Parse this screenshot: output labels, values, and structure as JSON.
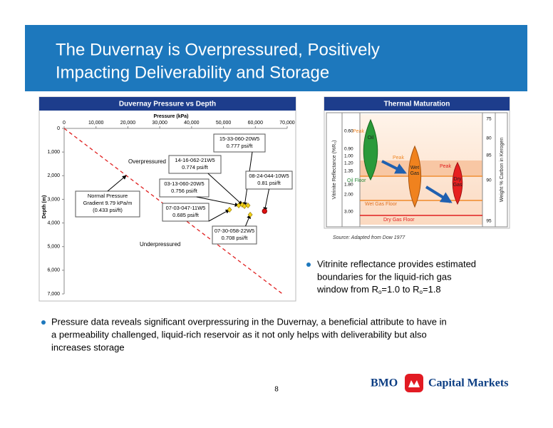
{
  "header": {
    "title_lines": [
      "The Duvernay is Overpressured, Positively",
      "Impacting Deliverability and Storage"
    ]
  },
  "chart_data": {
    "type": "scatter",
    "title": "Duvernay Pressure vs Depth",
    "x_label": "Pressure (kPa)",
    "y_label": "Depth (m)",
    "xlim": [
      0,
      70000
    ],
    "xticks": [
      0,
      {
        "value": 10000,
        "label": "10,000"
      },
      {
        "value": 20000,
        "label": "20,000"
      },
      {
        "value": 30000,
        "label": "30,000"
      },
      {
        "value": 40000,
        "label": "40,000"
      },
      {
        "value": 50000,
        "label": "50,000"
      },
      {
        "value": 60000,
        "label": "60,000"
      },
      {
        "value": 70000,
        "label": "70,000"
      }
    ],
    "ylim": [
      0,
      7000
    ],
    "y_reversed": true,
    "yticks": [
      0,
      {
        "value": 1000,
        "label": "1,000"
      },
      {
        "value": 2000,
        "label": "2,000"
      },
      {
        "value": 3000,
        "label": "3,000"
      },
      {
        "value": 4000,
        "label": "4,000"
      },
      {
        "value": 5000,
        "label": "5,000"
      },
      {
        "value": 6000,
        "label": "6,000"
      },
      {
        "value": 7000,
        "label": "7,000"
      }
    ],
    "points": [
      {
        "x": 51900,
        "y": 3440,
        "color": "#f2d21b",
        "marker": "diamond",
        "well": "07-03-047-11W5",
        "gradient": "0.685 psi/ft"
      },
      {
        "x": 54800,
        "y": 3260,
        "color": "#f2d21b",
        "marker": "diamond",
        "well": "03-13-060-20W5",
        "gradient": "0.756 psi/ft"
      },
      {
        "x": 55900,
        "y": 3230,
        "color": "#f2d21b",
        "marker": "diamond",
        "well": "14-16-062-21W5",
        "gradient": "0.774 psi/ft"
      },
      {
        "x": 56600,
        "y": 3290,
        "color": "#f2d21b",
        "marker": "diamond",
        "well": "15-33-060-20W5",
        "gradient": "0.777 psi/ft"
      },
      {
        "x": 57700,
        "y": 3260,
        "color": "#f2d21b",
        "marker": "diamond"
      },
      {
        "x": 58400,
        "y": 3650,
        "color": "#f2d21b",
        "marker": "diamond",
        "well": "07-30-058-22W5",
        "gradient": "0.708 psi/ft"
      },
      {
        "x": 62900,
        "y": 3500,
        "color": "#e01010",
        "marker": "circle",
        "well": "08-24-044-10W5",
        "gradient": "0.81 psi/ft"
      }
    ],
    "gradient_line": {
      "x": [
        0,
        68530
      ],
      "y": [
        0,
        7000
      ],
      "color": "#e02020"
    },
    "normal_label": [
      "Normal Pressure",
      "Gradient 9.79 kPa/m",
      "(0.433 psi/ft)"
    ],
    "overpressured_label": "Overpressured",
    "underpressured_label": "Underpressured"
  },
  "thermal": {
    "title": "Thermal Maturation",
    "left_axis_label": "Vitrinite Reflectance (%R₀)",
    "left_ticks": [
      "0.60",
      "0.90",
      "1.00",
      "1.20",
      "1.35",
      "1.80",
      "2.00",
      "3.00"
    ],
    "right_axis_label": "Weight % Carbon in Kerogen",
    "right_ticks": [
      "75",
      "80",
      "85",
      "90",
      "95"
    ],
    "labels": {
      "oil": "Oil",
      "wet_gas": [
        "Wet",
        "Gas"
      ],
      "dry_gas": [
        "Dry",
        "Gas"
      ],
      "peaks": [
        "Peak",
        "Peak",
        "Peak"
      ],
      "oil_floor": "Oil Floor",
      "wet_gas_floor": "Wet Gas Floor",
      "dry_gas_floor": "Dry Gas Floor"
    },
    "source": "Source:  Adapted from Dow 1977"
  },
  "bullets": {
    "right": {
      "lines": [
        "Vitrinite reflectance provides estimated",
        "boundaries for the liquid-rich gas"
      ],
      "last_line": [
        "window from R",
        "o",
        "=1.0 to R",
        "o",
        "=1.8"
      ]
    },
    "bottom": [
      "Pressure data reveals significant overpressuring in the Duvernay, a beneficial attribute to have in",
      "a permeability challenged, liquid-rich reservoir as it not only helps with deliverability but also",
      "increases storage"
    ]
  },
  "footer": {
    "page": "8",
    "logo": "BMO",
    "brand": "Capital Markets"
  }
}
